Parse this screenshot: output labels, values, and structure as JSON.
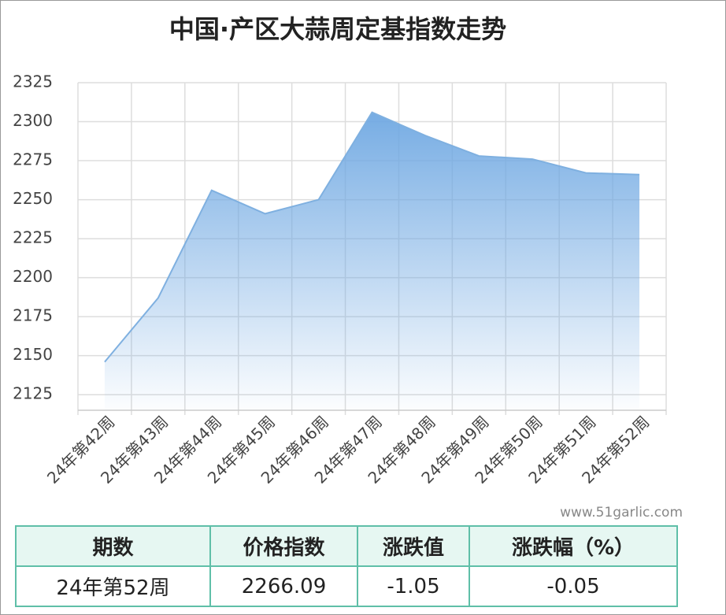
{
  "chart_data": {
    "type": "area",
    "title": "中国·产区大蒜周定基指数走势",
    "categories": [
      "24年第42周",
      "24年第43周",
      "24年第44周",
      "24年第45周",
      "24年第46周",
      "24年第47周",
      "24年第48周",
      "24年第49周",
      "24年第50周",
      "24年第51周",
      "24年第52周"
    ],
    "values": [
      2146,
      2187,
      2256,
      2241,
      2250,
      2306,
      2291,
      2278,
      2276,
      2267.14,
      2266.09
    ],
    "color": "#7fb0e0",
    "ylim": [
      2115,
      2325
    ],
    "yticks": [
      2125,
      2150,
      2175,
      2200,
      2225,
      2250,
      2275,
      2300,
      2325
    ],
    "grid": true
  },
  "watermark": "www.51garlic.com",
  "table": {
    "header": [
      "期数",
      "价格指数",
      "涨跌值",
      "涨跌幅（%）"
    ],
    "rows": [
      [
        "24年第52周",
        "2266.09",
        "-1.05",
        "-0.05"
      ]
    ]
  }
}
